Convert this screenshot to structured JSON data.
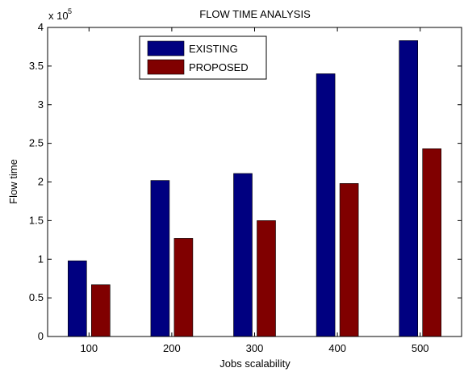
{
  "chart_data": {
    "type": "bar",
    "title": "FLOW TIME ANALYSIS",
    "xlabel": "Jobs scalability",
    "ylabel": "Flow time",
    "y_exponent_label": "x 10",
    "y_exponent_power": "5",
    "categories": [
      "100",
      "200",
      "300",
      "400",
      "500"
    ],
    "series": [
      {
        "name": "EXISTING",
        "color": "#000080",
        "values": [
          0.98,
          2.02,
          2.11,
          3.4,
          3.83
        ]
      },
      {
        "name": "PROPOSED",
        "color": "#800000",
        "values": [
          0.67,
          1.27,
          1.5,
          1.98,
          2.43
        ]
      }
    ],
    "ylim": [
      0,
      4
    ],
    "yticks": [
      0,
      0.5,
      1,
      1.5,
      2,
      2.5,
      3,
      3.5,
      4
    ],
    "ytick_labels": [
      "0",
      "0.5",
      "1",
      "1.5",
      "2",
      "2.5",
      "3",
      "3.5",
      "4"
    ],
    "grid": false,
    "legend_position": "top-left"
  }
}
